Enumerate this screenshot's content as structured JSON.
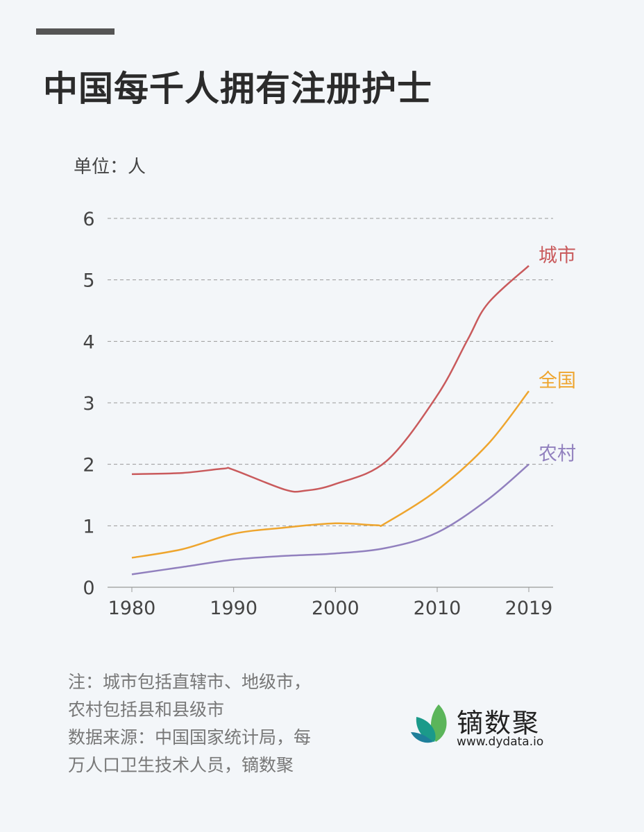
{
  "chart_data": {
    "type": "line",
    "title": "中国每千人拥有注册护士",
    "unit_label": "单位：人",
    "xlabel": "",
    "ylabel": "",
    "x_ticks": [
      "1980",
      "1990",
      "2000",
      "2010",
      "2019"
    ],
    "y_ticks": [
      "0",
      "1",
      "2",
      "3",
      "4",
      "5",
      "6"
    ],
    "xlim": [
      1980,
      2019
    ],
    "ylim": [
      0,
      6
    ],
    "grid": "horizontal dashed",
    "series": [
      {
        "name": "城市",
        "color": "#c95a5c",
        "x": [
          1980,
          1985,
          1989,
          1990,
          1995,
          1997,
          2000,
          2005,
          2010,
          2013,
          2015,
          2019
        ],
        "y": [
          1.84,
          1.86,
          1.93,
          1.91,
          1.59,
          1.57,
          1.68,
          2.05,
          3.12,
          4.03,
          4.62,
          5.23
        ]
      },
      {
        "name": "全国",
        "color": "#eea52e",
        "x": [
          1980,
          1985,
          1990,
          1995,
          2000,
          2004,
          2005,
          2010,
          2015,
          2019
        ],
        "y": [
          0.48,
          0.62,
          0.87,
          0.97,
          1.04,
          1.01,
          1.05,
          1.58,
          2.33,
          3.19
        ]
      },
      {
        "name": "农村",
        "color": "#9180be",
        "x": [
          1980,
          1985,
          1990,
          1995,
          2000,
          2005,
          2010,
          2015,
          2019
        ],
        "y": [
          0.21,
          0.33,
          0.45,
          0.51,
          0.55,
          0.64,
          0.89,
          1.43,
          2.0
        ]
      }
    ]
  },
  "note": "注：城市包括直辖市、地级市，\n农村包括县和县级市\n数据来源：中国国家统计局，每\n万人口卫生技术人员，镝数聚",
  "logo": {
    "name": "镝数聚",
    "url": "www.dydata.io",
    "colors": [
      "#1b9a8a",
      "#5bb55a",
      "#1e7f9a"
    ]
  }
}
